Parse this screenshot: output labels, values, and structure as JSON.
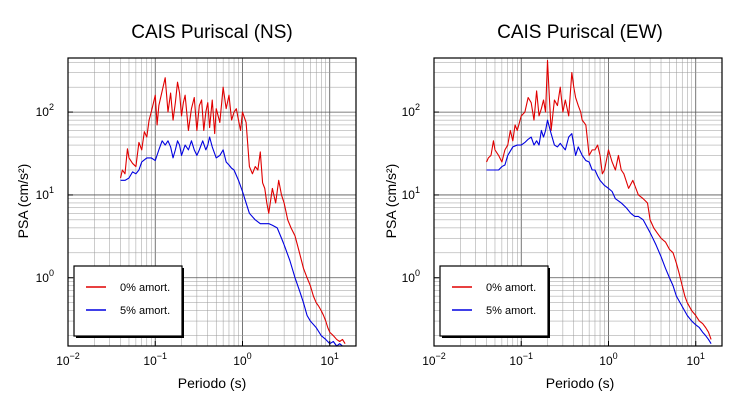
{
  "chart_data": [
    {
      "type": "line",
      "title": "CAIS Puriscal (NS)",
      "xlabel": "Periodo (s)",
      "ylabel": "PSA (cm/s²)",
      "xscale": "log",
      "yscale": "log",
      "xlim": [
        0.01,
        20
      ],
      "ylim": [
        0.15,
        450
      ],
      "x_ticks": [
        {
          "value": 0.01,
          "base": "10",
          "exp": "−2"
        },
        {
          "value": 0.1,
          "base": "10",
          "exp": "−1"
        },
        {
          "value": 1,
          "base": "10",
          "exp": "0"
        },
        {
          "value": 10,
          "base": "10",
          "exp": "1"
        }
      ],
      "y_ticks": [
        {
          "value": 1,
          "base": "10",
          "exp": "0"
        },
        {
          "value": 10,
          "base": "10",
          "exp": "1"
        },
        {
          "value": 100,
          "base": "10",
          "exp": "2"
        }
      ],
      "grid": true,
      "legend_position": "bottom-left",
      "series": [
        {
          "name": "0% amort.",
          "color": "#e00000",
          "x": [
            0.04,
            0.042,
            0.045,
            0.048,
            0.05,
            0.055,
            0.06,
            0.065,
            0.07,
            0.075,
            0.08,
            0.085,
            0.09,
            0.1,
            0.105,
            0.11,
            0.12,
            0.13,
            0.14,
            0.15,
            0.16,
            0.17,
            0.18,
            0.19,
            0.2,
            0.21,
            0.22,
            0.24,
            0.26,
            0.28,
            0.3,
            0.32,
            0.34,
            0.36,
            0.38,
            0.4,
            0.42,
            0.45,
            0.48,
            0.5,
            0.55,
            0.6,
            0.65,
            0.7,
            0.75,
            0.8,
            0.85,
            0.9,
            0.95,
            1.0,
            1.1,
            1.2,
            1.3,
            1.4,
            1.5,
            1.6,
            1.7,
            1.8,
            1.9,
            2.0,
            2.2,
            2.4,
            2.6,
            2.8,
            3.0,
            3.3,
            3.6,
            4.0,
            4.5,
            5.0,
            5.5,
            6.0,
            6.5,
            7.0,
            7.5,
            8.0,
            8.5,
            9.0,
            9.5,
            10,
            11,
            12,
            13,
            14,
            15
          ],
          "y": [
            16,
            20,
            18,
            36,
            28,
            24,
            22,
            43,
            35,
            58,
            50,
            80,
            100,
            160,
            70,
            120,
            180,
            260,
            100,
            170,
            80,
            130,
            230,
            170,
            90,
            130,
            160,
            60,
            110,
            150,
            60,
            120,
            140,
            60,
            100,
            130,
            65,
            140,
            55,
            110,
            75,
            200,
            110,
            160,
            80,
            100,
            110,
            80,
            60,
            100,
            75,
            22,
            18,
            22,
            20,
            33,
            14,
            12,
            8,
            6,
            12,
            8,
            15,
            10,
            8,
            5,
            4,
            3.2,
            2.0,
            1.3,
            1.0,
            0.8,
            0.6,
            0.5,
            0.45,
            0.4,
            0.35,
            0.3,
            0.25,
            0.22,
            0.2,
            0.18,
            0.17,
            0.18,
            0.16
          ]
        },
        {
          "name": "5% amort.",
          "color": "#0000e0",
          "x": [
            0.04,
            0.045,
            0.05,
            0.055,
            0.06,
            0.065,
            0.07,
            0.08,
            0.09,
            0.1,
            0.11,
            0.12,
            0.13,
            0.14,
            0.15,
            0.16,
            0.17,
            0.18,
            0.19,
            0.2,
            0.22,
            0.24,
            0.26,
            0.28,
            0.3,
            0.32,
            0.35,
            0.38,
            0.4,
            0.42,
            0.45,
            0.5,
            0.55,
            0.6,
            0.65,
            0.7,
            0.75,
            0.8,
            0.9,
            1.0,
            1.1,
            1.2,
            1.4,
            1.6,
            1.8,
            2.0,
            2.2,
            2.5,
            2.8,
            3.0,
            3.5,
            4.0,
            4.5,
            5.0,
            5.5,
            6.0,
            7.0,
            8.0,
            9.0,
            10,
            11,
            12,
            13,
            14,
            15
          ],
          "y": [
            15,
            15,
            16,
            19,
            18,
            20,
            25,
            28,
            28,
            26,
            35,
            45,
            40,
            45,
            38,
            28,
            35,
            45,
            40,
            30,
            40,
            35,
            45,
            35,
            30,
            35,
            45,
            35,
            40,
            50,
            38,
            28,
            30,
            35,
            25,
            23,
            21,
            20,
            15,
            11,
            8,
            6,
            5,
            4.5,
            4.5,
            4.5,
            4.3,
            4.0,
            3.0,
            2.5,
            1.6,
            1.0,
            0.7,
            0.5,
            0.35,
            0.3,
            0.25,
            0.2,
            0.18,
            0.16,
            0.17,
            0.15,
            0.16,
            0.15,
            0.15
          ]
        }
      ]
    },
    {
      "type": "line",
      "title": "CAIS Puriscal (EW)",
      "xlabel": "Periodo (s)",
      "ylabel": "PSA (cm/s²)",
      "xscale": "log",
      "yscale": "log",
      "xlim": [
        0.01,
        20
      ],
      "ylim": [
        0.15,
        450
      ],
      "x_ticks": [
        {
          "value": 0.01,
          "base": "10",
          "exp": "−2"
        },
        {
          "value": 0.1,
          "base": "10",
          "exp": "−1"
        },
        {
          "value": 1,
          "base": "10",
          "exp": "0"
        },
        {
          "value": 10,
          "base": "10",
          "exp": "1"
        }
      ],
      "y_ticks": [
        {
          "value": 1,
          "base": "10",
          "exp": "0"
        },
        {
          "value": 10,
          "base": "10",
          "exp": "1"
        },
        {
          "value": 100,
          "base": "10",
          "exp": "2"
        }
      ],
      "grid": true,
      "legend_position": "bottom-left",
      "series": [
        {
          "name": "0% amort.",
          "color": "#e00000",
          "x": [
            0.04,
            0.042,
            0.045,
            0.048,
            0.05,
            0.055,
            0.06,
            0.065,
            0.07,
            0.075,
            0.08,
            0.085,
            0.09,
            0.1,
            0.11,
            0.12,
            0.13,
            0.14,
            0.15,
            0.16,
            0.17,
            0.18,
            0.19,
            0.2,
            0.21,
            0.22,
            0.24,
            0.26,
            0.28,
            0.3,
            0.32,
            0.35,
            0.38,
            0.4,
            0.42,
            0.45,
            0.48,
            0.5,
            0.55,
            0.6,
            0.65,
            0.7,
            0.75,
            0.8,
            0.85,
            0.9,
            1.0,
            1.1,
            1.2,
            1.3,
            1.4,
            1.5,
            1.7,
            1.9,
            2.0,
            2.2,
            2.5,
            2.8,
            3.0,
            3.3,
            3.6,
            4.0,
            4.5,
            5.0,
            5.5,
            6.0,
            6.5,
            7.0,
            7.5,
            8.0,
            9.0,
            10,
            11,
            12,
            13,
            14,
            15
          ],
          "y": [
            25,
            28,
            30,
            45,
            35,
            30,
            25,
            35,
            40,
            60,
            45,
            70,
            60,
            90,
            100,
            150,
            130,
            80,
            180,
            90,
            110,
            140,
            100,
            420,
            150,
            60,
            140,
            120,
            200,
            100,
            140,
            90,
            300,
            200,
            150,
            120,
            100,
            80,
            70,
            30,
            35,
            35,
            40,
            30,
            18,
            20,
            35,
            25,
            20,
            30,
            20,
            18,
            12,
            15,
            13,
            10,
            9,
            8,
            5,
            4,
            3.5,
            3.0,
            2.7,
            2.2,
            2.0,
            1.5,
            1.1,
            0.8,
            0.6,
            0.5,
            0.4,
            0.35,
            0.3,
            0.28,
            0.25,
            0.22,
            0.18
          ]
        },
        {
          "name": "5% amort.",
          "color": "#0000e0",
          "x": [
            0.04,
            0.045,
            0.05,
            0.055,
            0.06,
            0.065,
            0.07,
            0.08,
            0.09,
            0.1,
            0.11,
            0.12,
            0.13,
            0.14,
            0.15,
            0.16,
            0.17,
            0.18,
            0.19,
            0.2,
            0.22,
            0.24,
            0.26,
            0.28,
            0.3,
            0.32,
            0.35,
            0.38,
            0.4,
            0.42,
            0.45,
            0.5,
            0.55,
            0.6,
            0.65,
            0.7,
            0.75,
            0.8,
            0.9,
            1.0,
            1.1,
            1.2,
            1.4,
            1.6,
            1.8,
            2.0,
            2.2,
            2.5,
            2.8,
            3.0,
            3.5,
            4.0,
            4.5,
            5.0,
            5.5,
            6.0,
            7.0,
            8.0,
            9.0,
            10,
            11,
            12,
            13,
            14,
            15
          ],
          "y": [
            20,
            20,
            20,
            20,
            22,
            23,
            30,
            38,
            40,
            40,
            43,
            47,
            50,
            40,
            45,
            40,
            60,
            50,
            60,
            80,
            55,
            40,
            38,
            42,
            38,
            35,
            50,
            55,
            40,
            30,
            38,
            30,
            26,
            25,
            20,
            20,
            17,
            15,
            13,
            12,
            11,
            9,
            8,
            7,
            6,
            5.5,
            5.5,
            5.0,
            4.0,
            3.5,
            2.5,
            1.8,
            1.3,
            1.0,
            0.8,
            0.6,
            0.45,
            0.35,
            0.3,
            0.27,
            0.25,
            0.22,
            0.2,
            0.18,
            0.16
          ]
        }
      ]
    }
  ]
}
